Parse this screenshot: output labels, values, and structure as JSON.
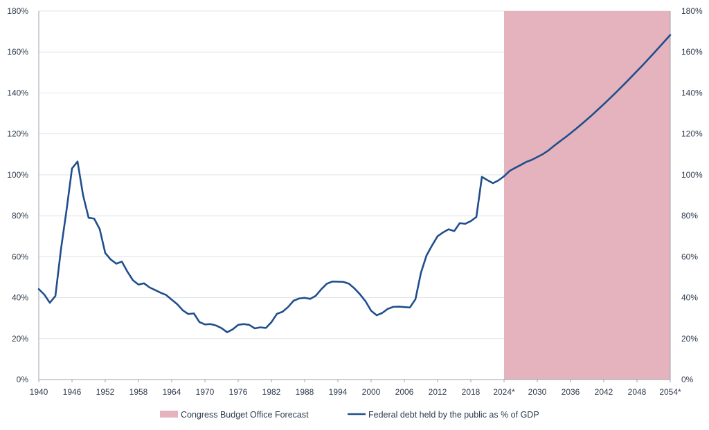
{
  "chart_data": {
    "type": "line",
    "title": "",
    "xlabel": "",
    "ylabel": "",
    "xlim": [
      1940,
      2054
    ],
    "ylim": [
      0,
      180
    ],
    "grid": true,
    "legend_placement": "bottom-center",
    "x_ticks": [
      "1940",
      "1946",
      "1952",
      "1958",
      "1964",
      "1970",
      "1976",
      "1982",
      "1988",
      "1994",
      "2000",
      "2006",
      "2012",
      "2018",
      "2024*",
      "2030",
      "2036",
      "2042",
      "2048",
      "2054*"
    ],
    "x_tick_values": [
      1940,
      1946,
      1952,
      1958,
      1964,
      1970,
      1976,
      1982,
      1988,
      1994,
      2000,
      2006,
      2012,
      2018,
      2024,
      2030,
      2036,
      2042,
      2048,
      2054
    ],
    "y_ticks": [
      "0%",
      "20%",
      "40%",
      "60%",
      "80%",
      "100%",
      "120%",
      "140%",
      "160%",
      "180%"
    ],
    "y_tick_values": [
      0,
      20,
      40,
      60,
      80,
      100,
      120,
      140,
      160,
      180
    ],
    "colors": {
      "line": "#1f4e8c",
      "forecast_band": "#e5b3bd",
      "grid": "#dfe3e8",
      "axis": "#9aa3ad",
      "text": "#2f3b4c"
    },
    "band": {
      "name": "Congress Budget Office Forecast",
      "x_start": 2024,
      "x_end": 2054
    },
    "series": [
      {
        "name": "Federal debt held by the public as % of GDP",
        "x": [
          1940,
          1941,
          1942,
          1943,
          1944,
          1945,
          1946,
          1947,
          1948,
          1949,
          1950,
          1951,
          1952,
          1953,
          1954,
          1955,
          1956,
          1957,
          1958,
          1959,
          1960,
          1961,
          1962,
          1963,
          1964,
          1965,
          1966,
          1967,
          1968,
          1969,
          1970,
          1971,
          1972,
          1973,
          1974,
          1975,
          1976,
          1977,
          1978,
          1979,
          1980,
          1981,
          1982,
          1983,
          1984,
          1985,
          1986,
          1987,
          1988,
          1989,
          1990,
          1991,
          1992,
          1993,
          1994,
          1995,
          1996,
          1997,
          1998,
          1999,
          2000,
          2001,
          2002,
          2003,
          2004,
          2005,
          2006,
          2007,
          2008,
          2009,
          2010,
          2011,
          2012,
          2013,
          2014,
          2015,
          2016,
          2017,
          2018,
          2019,
          2020,
          2021,
          2022,
          2023,
          2024,
          2025,
          2026,
          2027,
          2028,
          2029,
          2030,
          2031,
          2032,
          2033,
          2034,
          2035,
          2036,
          2037,
          2038,
          2039,
          2040,
          2041,
          2042,
          2043,
          2044,
          2045,
          2046,
          2047,
          2048,
          2049,
          2050,
          2051,
          2052,
          2053,
          2054
        ],
        "values": [
          44.2,
          41.5,
          37.5,
          40.8,
          63.5,
          82.5,
          103.1,
          106.5,
          90.0,
          79.0,
          78.6,
          73.5,
          61.8,
          58.6,
          56.6,
          57.6,
          52.7,
          48.5,
          46.4,
          47.0,
          45.0,
          43.7,
          42.4,
          41.3,
          39.0,
          36.8,
          33.8,
          32.0,
          32.3,
          28.1,
          26.9,
          27.1,
          26.4,
          25.1,
          23.1,
          24.5,
          26.7,
          27.1,
          26.7,
          25.0,
          25.5,
          25.2,
          28.0,
          32.1,
          33.1,
          35.4,
          38.5,
          39.6,
          39.9,
          39.4,
          40.9,
          44.1,
          46.8,
          47.9,
          47.8,
          47.7,
          46.8,
          44.5,
          41.6,
          38.2,
          33.6,
          31.4,
          32.5,
          34.5,
          35.5,
          35.6,
          35.4,
          35.2,
          39.2,
          52.2,
          60.6,
          65.5,
          70.0,
          71.9,
          73.4,
          72.5,
          76.4,
          76.1,
          77.4,
          79.4,
          99.0,
          97.4,
          95.9,
          97.3,
          99.3,
          101.9,
          103.4,
          104.8,
          106.3,
          107.3,
          108.7,
          110.1,
          111.9,
          114.1,
          116.2,
          118.2,
          120.3,
          122.5,
          124.8,
          127.1,
          129.5,
          132.0,
          134.5,
          137.1,
          139.7,
          142.4,
          145.1,
          147.9,
          150.7,
          153.5,
          156.4,
          159.3,
          162.3,
          165.3,
          168.3
        ]
      }
    ]
  }
}
